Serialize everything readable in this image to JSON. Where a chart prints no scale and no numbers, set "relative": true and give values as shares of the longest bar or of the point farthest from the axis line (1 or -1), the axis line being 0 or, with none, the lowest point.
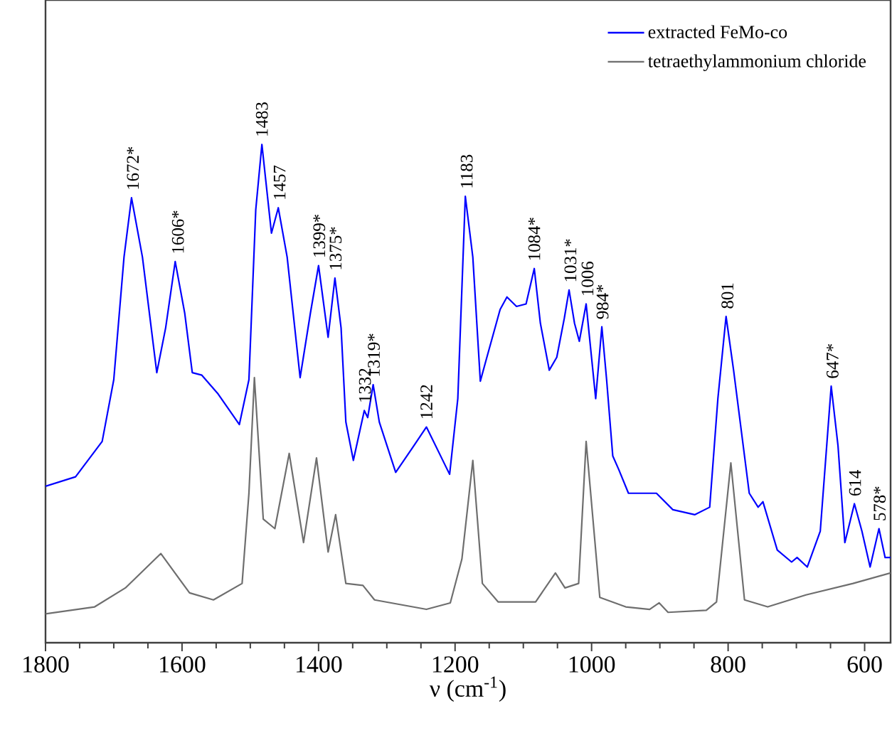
{
  "chart_data": {
    "type": "line",
    "relative": true,
    "xlabel": "ν (cm$^{-1}$)",
    "xlim": [
      1800,
      562
    ],
    "xticks": [
      1800,
      1600,
      1400,
      1200,
      1000,
      800,
      600
    ],
    "legend": "top right",
    "grid": false,
    "marker": "none",
    "line_style": "solid",
    "series": [
      {
        "name": "extracted FeMo-co",
        "color": "#0000ff",
        "x": [
          1800,
          1756,
          1717,
          1700,
          1685,
          1674,
          1658,
          1637,
          1624,
          1610,
          1596,
          1585,
          1571,
          1547,
          1516,
          1502,
          1492,
          1483,
          1469,
          1459,
          1446,
          1427,
          1412,
          1400,
          1386,
          1376,
          1367,
          1360,
          1349,
          1333,
          1328,
          1320,
          1311,
          1287,
          1263,
          1242,
          1208,
          1196,
          1185,
          1174,
          1163,
          1155,
          1134,
          1124,
          1110,
          1096,
          1084,
          1075,
          1062,
          1051,
          1040,
          1033,
          1025,
          1018,
          1008,
          994,
          985,
          978,
          969,
          960,
          946,
          905,
          881,
          849,
          827,
          815,
          803,
          792,
          769,
          756,
          749,
          728,
          707,
          699,
          684,
          665,
          649,
          639,
          629,
          615,
          604,
          592,
          579,
          570,
          562
        ],
        "values": [
          0.314,
          0.333,
          0.404,
          0.528,
          0.774,
          0.893,
          0.774,
          0.542,
          0.632,
          0.765,
          0.661,
          0.542,
          0.537,
          0.499,
          0.438,
          0.528,
          0.869,
          1.0,
          0.822,
          0.873,
          0.774,
          0.532,
          0.661,
          0.757,
          0.613,
          0.732,
          0.632,
          0.443,
          0.366,
          0.466,
          0.452,
          0.518,
          0.443,
          0.342,
          0.39,
          0.433,
          0.338,
          0.49,
          0.896,
          0.774,
          0.525,
          0.565,
          0.669,
          0.694,
          0.675,
          0.68,
          0.751,
          0.641,
          0.547,
          0.573,
          0.651,
          0.708,
          0.641,
          0.605,
          0.68,
          0.49,
          0.634,
          0.528,
          0.375,
          0.347,
          0.3,
          0.3,
          0.267,
          0.257,
          0.272,
          0.49,
          0.655,
          0.547,
          0.3,
          0.272,
          0.283,
          0.186,
          0.162,
          0.171,
          0.152,
          0.224,
          0.515,
          0.395,
          0.201,
          0.279,
          0.224,
          0.152,
          0.229,
          0.171,
          0.171
        ]
      },
      {
        "name": "tetraethylammonium chloride",
        "color": "#6e6e6e",
        "x": [
          1800,
          1728,
          1683,
          1631,
          1589,
          1554,
          1512,
          1502,
          1494,
          1481,
          1464,
          1443,
          1422,
          1403,
          1386,
          1375,
          1360,
          1335,
          1318,
          1242,
          1207,
          1190,
          1174,
          1160,
          1137,
          1082,
          1068,
          1053,
          1039,
          1019,
          1008,
          988,
          950,
          915,
          901,
          888,
          832,
          817,
          796,
          776,
          742,
          686,
          617,
          562
        ],
        "values": [
          0.058,
          0.072,
          0.11,
          0.179,
          0.1,
          0.086,
          0.119,
          0.3,
          0.532,
          0.248,
          0.229,
          0.38,
          0.201,
          0.371,
          0.182,
          0.257,
          0.119,
          0.115,
          0.086,
          0.067,
          0.08,
          0.168,
          0.366,
          0.119,
          0.082,
          0.082,
          0.11,
          0.14,
          0.11,
          0.119,
          0.404,
          0.091,
          0.072,
          0.067,
          0.08,
          0.061,
          0.065,
          0.082,
          0.361,
          0.086,
          0.072,
          0.096,
          0.119,
          0.14
        ]
      }
    ],
    "annotations": [
      {
        "text": "1672*",
        "x": 1672,
        "y": 0.893
      },
      {
        "text": "1606*",
        "x": 1606,
        "y": 0.765
      },
      {
        "text": "1483",
        "x": 1483,
        "y": 1.0
      },
      {
        "text": "1457",
        "x": 1457,
        "y": 0.873
      },
      {
        "text": "1399*",
        "x": 1399,
        "y": 0.757
      },
      {
        "text": "1375*",
        "x": 1375,
        "y": 0.732
      },
      {
        "text": "1332",
        "x": 1332,
        "y": 0.466
      },
      {
        "text": "1319*",
        "x": 1319,
        "y": 0.518
      },
      {
        "text": "1242",
        "x": 1242,
        "y": 0.433
      },
      {
        "text": "1183",
        "x": 1183,
        "y": 0.896
      },
      {
        "text": "1084*",
        "x": 1084,
        "y": 0.751
      },
      {
        "text": "1031*",
        "x": 1031,
        "y": 0.708
      },
      {
        "text": "1006",
        "x": 1006,
        "y": 0.68
      },
      {
        "text": "984*",
        "x": 984,
        "y": 0.634
      },
      {
        "text": "801",
        "x": 801,
        "y": 0.655
      },
      {
        "text": "647*",
        "x": 647,
        "y": 0.515
      },
      {
        "text": "614",
        "x": 614,
        "y": 0.279
      },
      {
        "text": "578*",
        "x": 578,
        "y": 0.229
      }
    ]
  }
}
